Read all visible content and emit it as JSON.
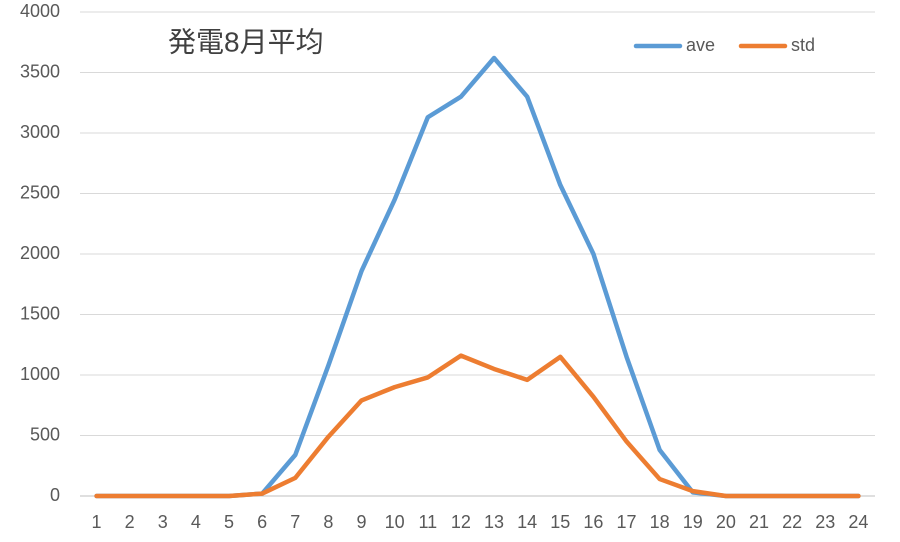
{
  "chart_data": {
    "type": "line",
    "title": "発電8月平均",
    "categories": [
      "1",
      "2",
      "3",
      "4",
      "5",
      "6",
      "7",
      "8",
      "9",
      "10",
      "11",
      "12",
      "13",
      "14",
      "15",
      "16",
      "17",
      "18",
      "19",
      "20",
      "21",
      "22",
      "23",
      "24"
    ],
    "series": [
      {
        "name": "ave",
        "color": "#5b9bd5",
        "values": [
          0,
          0,
          0,
          0,
          0,
          20,
          340,
          1080,
          1860,
          2450,
          3130,
          3300,
          3620,
          3300,
          2570,
          2000,
          1150,
          380,
          30,
          0,
          0,
          0,
          0,
          0
        ]
      },
      {
        "name": "std",
        "color": "#ed7d31",
        "values": [
          0,
          0,
          0,
          0,
          0,
          20,
          150,
          490,
          790,
          900,
          980,
          1160,
          1050,
          960,
          1150,
          820,
          450,
          140,
          40,
          0,
          0,
          0,
          0,
          0
        ]
      }
    ],
    "ylim": [
      0,
      4000
    ],
    "yticks": [
      0,
      500,
      1000,
      1500,
      2000,
      2500,
      3000,
      3500,
      4000
    ],
    "grid": true,
    "legend": "top-right"
  }
}
